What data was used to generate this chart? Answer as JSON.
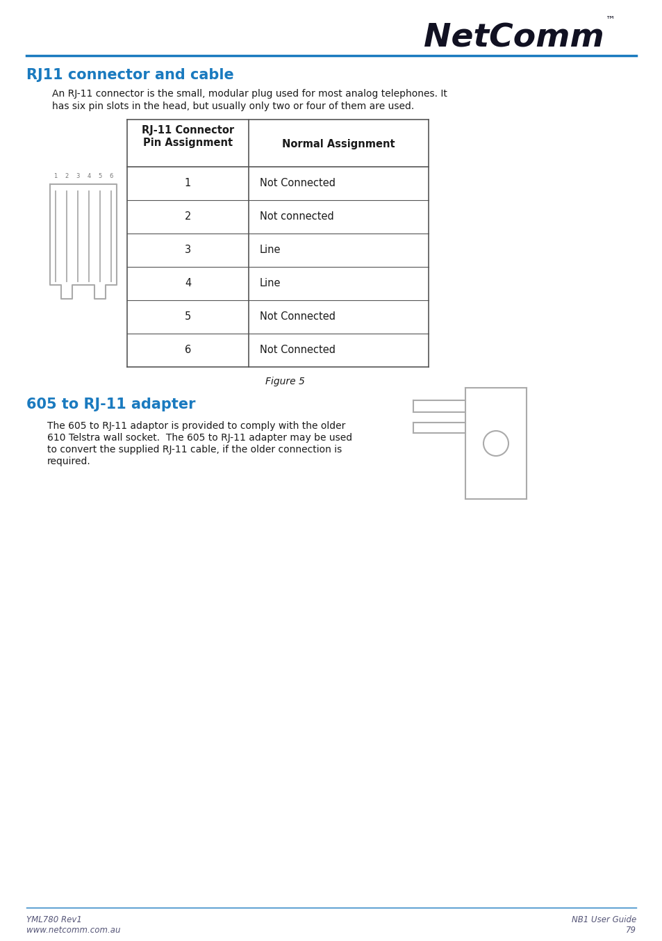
{
  "page_bg": "#ffffff",
  "header_line_color": "#1a7abf",
  "header_logo_text": "NetComm",
  "header_logo_color": "#1a1a2e",
  "section1_title": "RJ11 connector and cable",
  "section1_title_color": "#1a7abf",
  "section1_body1": "An RJ-11 connector is the small, modular plug used for most analog telephones. It",
  "section1_body2": "has six pin slots in the head, but usually only two or four of them are used.",
  "table_header_col1_line1": "RJ-11 Connector",
  "table_header_col1_line2": "Pin Assignment",
  "table_header_col2": "Normal Assignment",
  "table_pins": [
    "1",
    "2",
    "3",
    "4",
    "5",
    "6"
  ],
  "table_assignments": [
    "Not Connected",
    "Not connected",
    "Line",
    "Line",
    "Not Connected",
    "Not Connected"
  ],
  "figure_caption": "Figure 5",
  "section2_title": "605 to RJ-11 adapter",
  "section2_title_color": "#1a7abf",
  "section2_body1": "The 605 to RJ-11 adaptor is provided to comply with the older",
  "section2_body2": "610 Telstra wall socket.  The 605 to RJ-11 adapter may be used",
  "section2_body3": "to convert the supplied RJ-11 cable, if the older connection is",
  "section2_body4": "required.",
  "footer_left_line1": "YML780 Rev1",
  "footer_left_line2": "www.netcomm.com.au",
  "footer_right_line1": "NB1 User Guide",
  "footer_right_line2": "79",
  "footer_line_color": "#1a7abf",
  "text_color": "#1a1a1a",
  "table_border_color": "#555555",
  "diagram_color": "#aaaaaa"
}
